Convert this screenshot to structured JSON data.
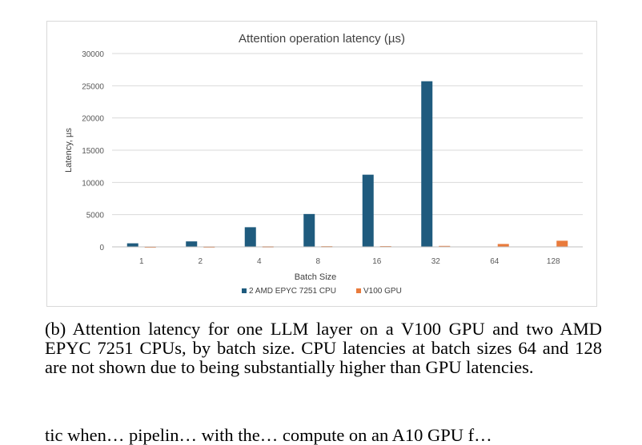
{
  "chart_data": {
    "type": "bar",
    "title": "Attention operation latency (µs)",
    "xlabel": "Batch Size",
    "ylabel": "Latency, µs",
    "categories": [
      "1",
      "2",
      "4",
      "8",
      "16",
      "32",
      "64",
      "128"
    ],
    "ylim": [
      0,
      30000
    ],
    "yticks": [
      "0",
      "5000",
      "10000",
      "15000",
      "20000",
      "25000",
      "30000"
    ],
    "grid": true,
    "legend_position": "bottom",
    "series": [
      {
        "name": "2 AMD EPYC 7251 CPU",
        "color": "#1f5b7e",
        "values": [
          550,
          850,
          3050,
          5100,
          11200,
          25700,
          null,
          null
        ]
      },
      {
        "name": "V100 GPU",
        "color": "#e97b3c",
        "values": [
          60,
          70,
          90,
          110,
          120,
          150,
          450,
          950
        ]
      }
    ]
  },
  "caption": "(b) Attention latency for one LLM layer on a V100 GPU and two AMD EPYC 7251 CPUs, by batch size. CPU latencies at batch sizes 64 and 128 are not shown due to being substantially higher than GPU latencies.",
  "caption_next": "tic when… pipelin… with   the…  compute  on an A10 GPU f…"
}
